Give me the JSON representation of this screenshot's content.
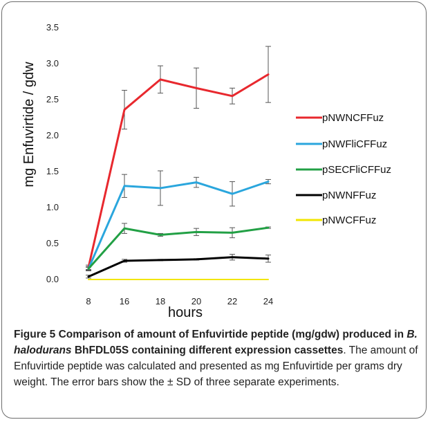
{
  "chart_data": {
    "type": "line",
    "xlabel": "hours",
    "ylabel": "mg Enfuvirtide / gdw",
    "x": [
      "8",
      "16",
      "18",
      "20",
      "22",
      "24"
    ],
    "ylim": [
      0.0,
      3.5
    ],
    "yticks": [
      "0.0",
      "0.5",
      "1.0",
      "1.5",
      "2.0",
      "2.5",
      "3.0",
      "3.5"
    ],
    "grid": false,
    "legend_position": "right",
    "series": [
      {
        "name": "pNWNCFFuz",
        "color": "#e8282e",
        "values": [
          0.17,
          2.36,
          2.78,
          2.66,
          2.55,
          2.85
        ],
        "errors": [
          0.03,
          0.27,
          0.19,
          0.28,
          0.11,
          0.39
        ]
      },
      {
        "name": "pNWFliCFFuz",
        "color": "#2aa6dd",
        "values": [
          0.15,
          1.3,
          1.27,
          1.35,
          1.19,
          1.36
        ],
        "errors": [
          0.03,
          0.16,
          0.24,
          0.07,
          0.17,
          0.03
        ]
      },
      {
        "name": "pSECFliCFFuz",
        "color": "#22a045",
        "values": [
          0.15,
          0.71,
          0.62,
          0.66,
          0.65,
          0.72
        ],
        "errors": [
          0.02,
          0.07,
          0.02,
          0.05,
          0.07,
          0.01
        ]
      },
      {
        "name": "pNWNFFuz",
        "color": "#000000",
        "values": [
          0.04,
          0.26,
          0.27,
          0.28,
          0.31,
          0.29
        ],
        "errors": [
          0.02,
          0.02,
          0.01,
          0.01,
          0.04,
          0.05
        ]
      },
      {
        "name": "pNWCFFuz",
        "color": "#f2e600",
        "values": [
          0.0,
          0.0,
          0.0,
          0.0,
          0.0,
          0.0
        ],
        "errors": [
          0,
          0,
          0,
          0,
          0,
          0
        ]
      }
    ]
  },
  "caption": {
    "label": "Figure 5",
    "title_part1": "Comparison of amount of Enfuvirtide peptide (mg/gdw) produced in ",
    "title_italic": "B. halodurans",
    "title_part2": " BhFDL05S containing different expression cassettes",
    "body": ". The amount of Enfuvirtide peptide was calculated and presented as mg Enfuvirtide per grams dry weight. The error bars show the ± SD of three separate experiments."
  }
}
